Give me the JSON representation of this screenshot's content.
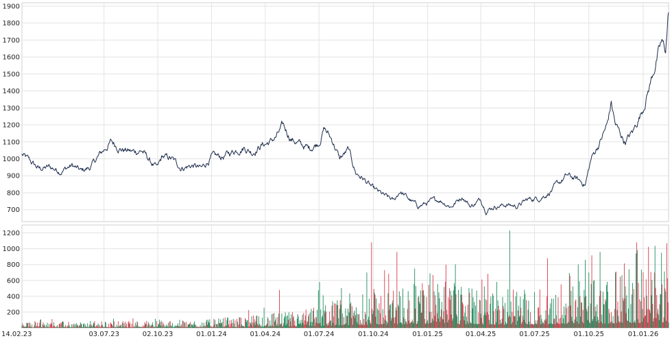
{
  "chart_data": [
    {
      "type": "line",
      "name_hint": "price",
      "y_ticks": [
        "700",
        "800",
        "900",
        "1000",
        "1100",
        "1200",
        "1300",
        "1400",
        "1500",
        "1600",
        "1700",
        "1800",
        "1900"
      ],
      "ylim": [
        630,
        1920
      ],
      "x_tick_labels": [
        "14.02.23",
        "03.07.23",
        "02.10.23",
        "01.01.24",
        "01.04.24",
        "01.07.24",
        "01.10.24",
        "01.01.25",
        "01.04.25",
        "01.07.25",
        "01.10.25",
        "01.01.26"
      ],
      "x_range": [
        "2023-02-14",
        "2026-02-13"
      ],
      "line_color": "#1b2a4a",
      "grid": true,
      "anchors": [
        [
          "2023-02-14",
          1025
        ],
        [
          "2023-03-01",
          980
        ],
        [
          "2023-03-15",
          940
        ],
        [
          "2023-04-01",
          950
        ],
        [
          "2023-04-20",
          930
        ],
        [
          "2023-05-10",
          960
        ],
        [
          "2023-05-25",
          925
        ],
        [
          "2023-06-10",
          950
        ],
        [
          "2023-06-25",
          1020
        ],
        [
          "2023-07-05",
          1060
        ],
        [
          "2023-07-15",
          1100
        ],
        [
          "2023-08-01",
          1060
        ],
        [
          "2023-08-20",
          1040
        ],
        [
          "2023-09-05",
          1050
        ],
        [
          "2023-09-20",
          980
        ],
        [
          "2023-10-01",
          940
        ],
        [
          "2023-10-10",
          1010
        ],
        [
          "2023-10-25",
          1000
        ],
        [
          "2023-11-10",
          950
        ],
        [
          "2023-12-01",
          960
        ],
        [
          "2023-12-15",
          940
        ],
        [
          "2024-01-01",
          1010
        ],
        [
          "2024-01-20",
          1010
        ],
        [
          "2024-02-10",
          1050
        ],
        [
          "2024-02-25",
          1070
        ],
        [
          "2024-03-10",
          1040
        ],
        [
          "2024-03-25",
          1080
        ],
        [
          "2024-04-10",
          1100
        ],
        [
          "2024-04-20",
          1130
        ],
        [
          "2024-05-01",
          1190
        ],
        [
          "2024-05-15",
          1120
        ],
        [
          "2024-06-01",
          1080
        ],
        [
          "2024-06-15",
          1060
        ],
        [
          "2024-07-01",
          1100
        ],
        [
          "2024-07-10",
          1180
        ],
        [
          "2024-07-25",
          1100
        ],
        [
          "2024-08-05",
          1000
        ],
        [
          "2024-08-20",
          1050
        ],
        [
          "2024-09-01",
          920
        ],
        [
          "2024-09-15",
          880
        ],
        [
          "2024-10-01",
          820
        ],
        [
          "2024-10-20",
          780
        ],
        [
          "2024-11-05",
          750
        ],
        [
          "2024-11-15",
          810
        ],
        [
          "2024-12-01",
          760
        ],
        [
          "2024-12-15",
          720
        ],
        [
          "2025-01-01",
          740
        ],
        [
          "2025-01-20",
          760
        ],
        [
          "2025-02-10",
          720
        ],
        [
          "2025-03-01",
          780
        ],
        [
          "2025-03-15",
          720
        ],
        [
          "2025-04-01",
          760
        ],
        [
          "2025-04-10",
          700
        ],
        [
          "2025-04-25",
          720
        ],
        [
          "2025-05-15",
          730
        ],
        [
          "2025-06-01",
          720
        ],
        [
          "2025-06-20",
          760
        ],
        [
          "2025-07-10",
          770
        ],
        [
          "2025-07-25",
          800
        ],
        [
          "2025-08-10",
          850
        ],
        [
          "2025-08-25",
          900
        ],
        [
          "2025-09-10",
          880
        ],
        [
          "2025-09-25",
          850
        ],
        [
          "2025-10-05",
          1000
        ],
        [
          "2025-10-20",
          1100
        ],
        [
          "2025-11-01",
          1200
        ],
        [
          "2025-11-08",
          1330
        ],
        [
          "2025-11-15",
          1200
        ],
        [
          "2025-12-01",
          1100
        ],
        [
          "2025-12-15",
          1160
        ],
        [
          "2026-01-01",
          1300
        ],
        [
          "2026-01-15",
          1470
        ],
        [
          "2026-01-25",
          1600
        ],
        [
          "2026-02-01",
          1680
        ],
        [
          "2026-02-08",
          1640
        ],
        [
          "2026-02-13",
          1870
        ]
      ]
    },
    {
      "type": "bar",
      "name_hint": "volume",
      "y_ticks": [
        "200",
        "400",
        "600",
        "800",
        "1000",
        "1200"
      ],
      "ylim": [
        0,
        1300
      ],
      "x_tick_labels": [
        "14.02.23",
        "03.07.23",
        "02.10.23",
        "01.01.24",
        "01.04.24",
        "01.07.24",
        "01.10.24",
        "01.01.25",
        "01.04.25",
        "01.07.25",
        "01.10.25",
        "01.01.26"
      ],
      "x_range": [
        "2023-02-14",
        "2026-02-13"
      ],
      "colors": {
        "up": "#1f8a5b",
        "down": "#d63a4a"
      },
      "grid": true,
      "spikes": [
        [
          "2024-04-25",
          480
        ],
        [
          "2024-07-02",
          580
        ],
        [
          "2024-09-20",
          700
        ],
        [
          "2024-09-28",
          1080
        ],
        [
          "2024-10-20",
          730
        ],
        [
          "2024-11-10",
          960
        ],
        [
          "2024-12-10",
          750
        ],
        [
          "2025-01-05",
          690
        ],
        [
          "2025-02-01",
          800
        ],
        [
          "2025-04-28",
          580
        ],
        [
          "2025-05-20",
          1230
        ],
        [
          "2025-08-15",
          550
        ],
        [
          "2025-09-25",
          860
        ],
        [
          "2025-10-01",
          700
        ],
        [
          "2025-10-20",
          960
        ],
        [
          "2025-11-15",
          700
        ],
        [
          "2025-12-20",
          940
        ],
        [
          "2026-01-20",
          700
        ],
        [
          "2026-02-01",
          950
        ],
        [
          "2026-02-10",
          1070
        ]
      ],
      "envelope": [
        [
          "2023-02-14",
          40
        ],
        [
          "2024-01-01",
          60
        ],
        [
          "2024-06-01",
          120
        ],
        [
          "2024-09-01",
          250
        ],
        [
          "2025-01-01",
          330
        ],
        [
          "2025-06-01",
          260
        ],
        [
          "2025-09-01",
          330
        ],
        [
          "2026-02-13",
          450
        ]
      ]
    }
  ]
}
